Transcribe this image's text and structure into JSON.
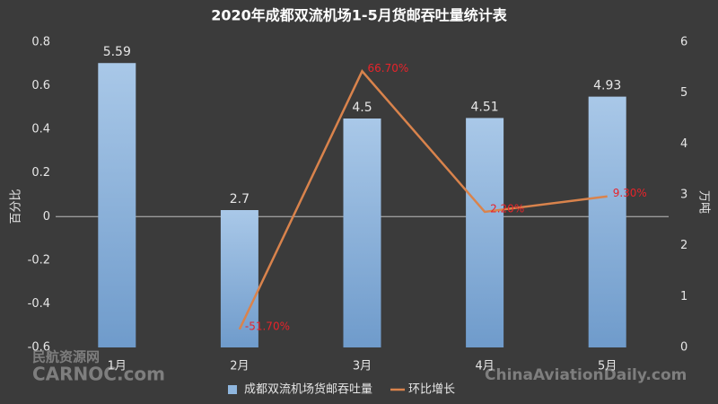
{
  "chart_data": {
    "type": "bar",
    "title": "2020年成都双流机场1-5月货邮吞吐量统计表",
    "y_label": "百分比",
    "y2_label": "万吨",
    "categories": [
      "1月",
      "2月",
      "3月",
      "4月",
      "5月"
    ],
    "series": [
      {
        "name": "成都双流机场货邮吞吐量",
        "type": "bar",
        "axis": "y2",
        "color": "#8fb6de",
        "values": [
          5.59,
          2.7,
          4.5,
          4.51,
          4.93
        ]
      },
      {
        "name": "环比增长",
        "type": "line",
        "axis": "y",
        "color": "#d9834c",
        "values": [
          null,
          -0.517,
          0.667,
          0.022,
          0.093
        ],
        "value_labels": [
          null,
          "-51.70%",
          "66.70%",
          "2.20%",
          "9.30%"
        ],
        "label_color": "#e8232a"
      }
    ],
    "ylim": [
      -0.6,
      0.8
    ],
    "yticks": [
      -0.6,
      -0.4,
      -0.2,
      0,
      0.2,
      0.4,
      0.6,
      0.8
    ],
    "y2lim": [
      0,
      6
    ],
    "y2ticks": [
      0,
      1,
      2,
      3,
      4,
      5,
      6
    ],
    "grid": false,
    "legend": "bottom"
  },
  "watermarks": [
    "民航资源网",
    "CARNOC.com",
    "ChinaAviationDaily.com"
  ]
}
